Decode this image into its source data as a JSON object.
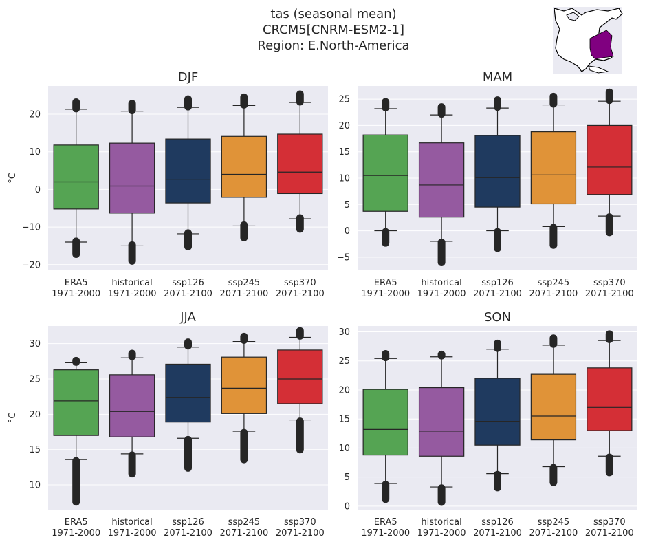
{
  "figure": {
    "title_lines": [
      "tas (seasonal mean)",
      "CRCM5[CNRM-ESM2-1]",
      "Region: E.North-America"
    ],
    "ylabel": "°C"
  },
  "categories": [
    [
      "ERA5",
      "1971-2000"
    ],
    [
      "historical",
      "1971-2000"
    ],
    [
      "ssp126",
      "2071-2100"
    ],
    [
      "ssp245",
      "2071-2100"
    ],
    [
      "ssp370",
      "2071-2100"
    ]
  ],
  "colors": [
    "#55a453",
    "#955aa0",
    "#1f3a5f",
    "#e09338",
    "#d42f36"
  ],
  "map_inset": {
    "region_color": "#800080"
  },
  "chart_data": [
    {
      "type": "box",
      "title": "DJF",
      "ylabel": "°C",
      "ylim": [
        -21.5,
        27.5
      ],
      "yticks": [
        -20,
        -10,
        0,
        10,
        20
      ],
      "boxes": [
        {
          "q1": -5.2,
          "median": 2.0,
          "q3": 11.8,
          "whisker_low": -14.0,
          "whisker_high": 21.3,
          "outliers": [
            [
              -17.2,
              -13.8
            ],
            [
              21.5,
              23.2
            ]
          ]
        },
        {
          "q1": -6.3,
          "median": 0.9,
          "q3": 12.3,
          "whisker_low": -15.0,
          "whisker_high": 20.8,
          "outliers": [
            [
              -19.0,
              -14.8
            ],
            [
              21.0,
              22.8
            ]
          ]
        },
        {
          "q1": -3.6,
          "median": 2.7,
          "q3": 13.4,
          "whisker_low": -11.8,
          "whisker_high": 21.8,
          "outliers": [
            [
              -15.2,
              -11.6
            ],
            [
              22.0,
              24.0
            ]
          ]
        },
        {
          "q1": -2.1,
          "median": 4.0,
          "q3": 14.1,
          "whisker_low": -9.7,
          "whisker_high": 22.3,
          "outliers": [
            [
              -12.8,
              -9.5
            ],
            [
              22.5,
              24.5
            ]
          ]
        },
        {
          "q1": -1.1,
          "median": 4.6,
          "q3": 14.7,
          "whisker_low": -7.8,
          "whisker_high": 23.1,
          "outliers": [
            [
              -10.5,
              -7.6
            ],
            [
              23.3,
              25.3
            ]
          ]
        }
      ]
    },
    {
      "type": "box",
      "title": "MAM",
      "ylabel": "",
      "ylim": [
        -7.5,
        27.5
      ],
      "yticks": [
        -5,
        0,
        5,
        10,
        15,
        20,
        25
      ],
      "boxes": [
        {
          "q1": 3.7,
          "median": 10.5,
          "q3": 18.2,
          "whisker_low": 0.0,
          "whisker_high": 23.2,
          "outliers": [
            [
              -2.3,
              -0.2
            ],
            [
              23.4,
              24.5
            ]
          ]
        },
        {
          "q1": 2.6,
          "median": 8.7,
          "q3": 16.7,
          "whisker_low": -2.0,
          "whisker_high": 22.0,
          "outliers": [
            [
              -6.0,
              -2.2
            ],
            [
              22.2,
              23.5
            ]
          ]
        },
        {
          "q1": 4.5,
          "median": 10.1,
          "q3": 18.1,
          "whisker_low": 0.0,
          "whisker_high": 23.3,
          "outliers": [
            [
              -3.3,
              -0.2
            ],
            [
              23.5,
              24.8
            ]
          ]
        },
        {
          "q1": 5.1,
          "median": 10.6,
          "q3": 18.8,
          "whisker_low": 0.8,
          "whisker_high": 23.9,
          "outliers": [
            [
              -2.7,
              0.6
            ],
            [
              24.1,
              25.5
            ]
          ]
        },
        {
          "q1": 6.9,
          "median": 12.1,
          "q3": 20.0,
          "whisker_low": 2.8,
          "whisker_high": 24.6,
          "outliers": [
            [
              -0.3,
              2.6
            ],
            [
              24.8,
              26.3
            ]
          ]
        }
      ]
    },
    {
      "type": "box",
      "title": "JJA",
      "ylabel": "°C",
      "ylim": [
        6.5,
        32.5
      ],
      "yticks": [
        10,
        15,
        20,
        25,
        30
      ],
      "boxes": [
        {
          "q1": 17.0,
          "median": 21.9,
          "q3": 26.3,
          "whisker_low": 13.6,
          "whisker_high": 27.3,
          "outliers": [
            [
              7.6,
              13.4
            ],
            [
              27.4,
              27.6
            ]
          ]
        },
        {
          "q1": 16.8,
          "median": 20.4,
          "q3": 25.6,
          "whisker_low": 14.4,
          "whisker_high": 28.0,
          "outliers": [
            [
              11.6,
              14.2
            ],
            [
              28.2,
              28.6
            ]
          ]
        },
        {
          "q1": 18.9,
          "median": 22.4,
          "q3": 27.1,
          "whisker_low": 16.6,
          "whisker_high": 29.5,
          "outliers": [
            [
              12.4,
              16.4
            ],
            [
              29.7,
              30.2
            ]
          ]
        },
        {
          "q1": 20.1,
          "median": 23.7,
          "q3": 28.1,
          "whisker_low": 17.6,
          "whisker_high": 30.3,
          "outliers": [
            [
              13.6,
              17.4
            ],
            [
              30.5,
              31.0
            ]
          ]
        },
        {
          "q1": 21.5,
          "median": 25.0,
          "q3": 29.1,
          "whisker_low": 19.2,
          "whisker_high": 30.9,
          "outliers": [
            [
              15.0,
              19.0
            ],
            [
              31.1,
              31.8
            ]
          ]
        }
      ]
    },
    {
      "type": "box",
      "title": "SON",
      "ylabel": "",
      "ylim": [
        -0.6,
        31.0
      ],
      "yticks": [
        0,
        5,
        10,
        15,
        20,
        25,
        30
      ],
      "boxes": [
        {
          "q1": 8.8,
          "median": 13.2,
          "q3": 20.1,
          "whisker_low": 3.9,
          "whisker_high": 25.4,
          "outliers": [
            [
              1.2,
              3.7
            ],
            [
              25.6,
              26.2
            ]
          ]
        },
        {
          "q1": 8.6,
          "median": 12.9,
          "q3": 20.4,
          "whisker_low": 3.3,
          "whisker_high": 25.7,
          "outliers": [
            [
              0.7,
              3.1
            ],
            [
              25.9,
              26.1
            ]
          ]
        },
        {
          "q1": 10.5,
          "median": 14.6,
          "q3": 22.0,
          "whisker_low": 5.6,
          "whisker_high": 27.0,
          "outliers": [
            [
              3.2,
              5.4
            ],
            [
              27.2,
              28.0
            ]
          ]
        },
        {
          "q1": 11.4,
          "median": 15.5,
          "q3": 22.7,
          "whisker_low": 6.8,
          "whisker_high": 27.7,
          "outliers": [
            [
              4.1,
              6.6
            ],
            [
              27.9,
              28.9
            ]
          ]
        },
        {
          "q1": 13.0,
          "median": 17.0,
          "q3": 23.8,
          "whisker_low": 8.6,
          "whisker_high": 28.5,
          "outliers": [
            [
              5.8,
              8.4
            ],
            [
              28.7,
              29.6
            ]
          ]
        }
      ]
    }
  ]
}
